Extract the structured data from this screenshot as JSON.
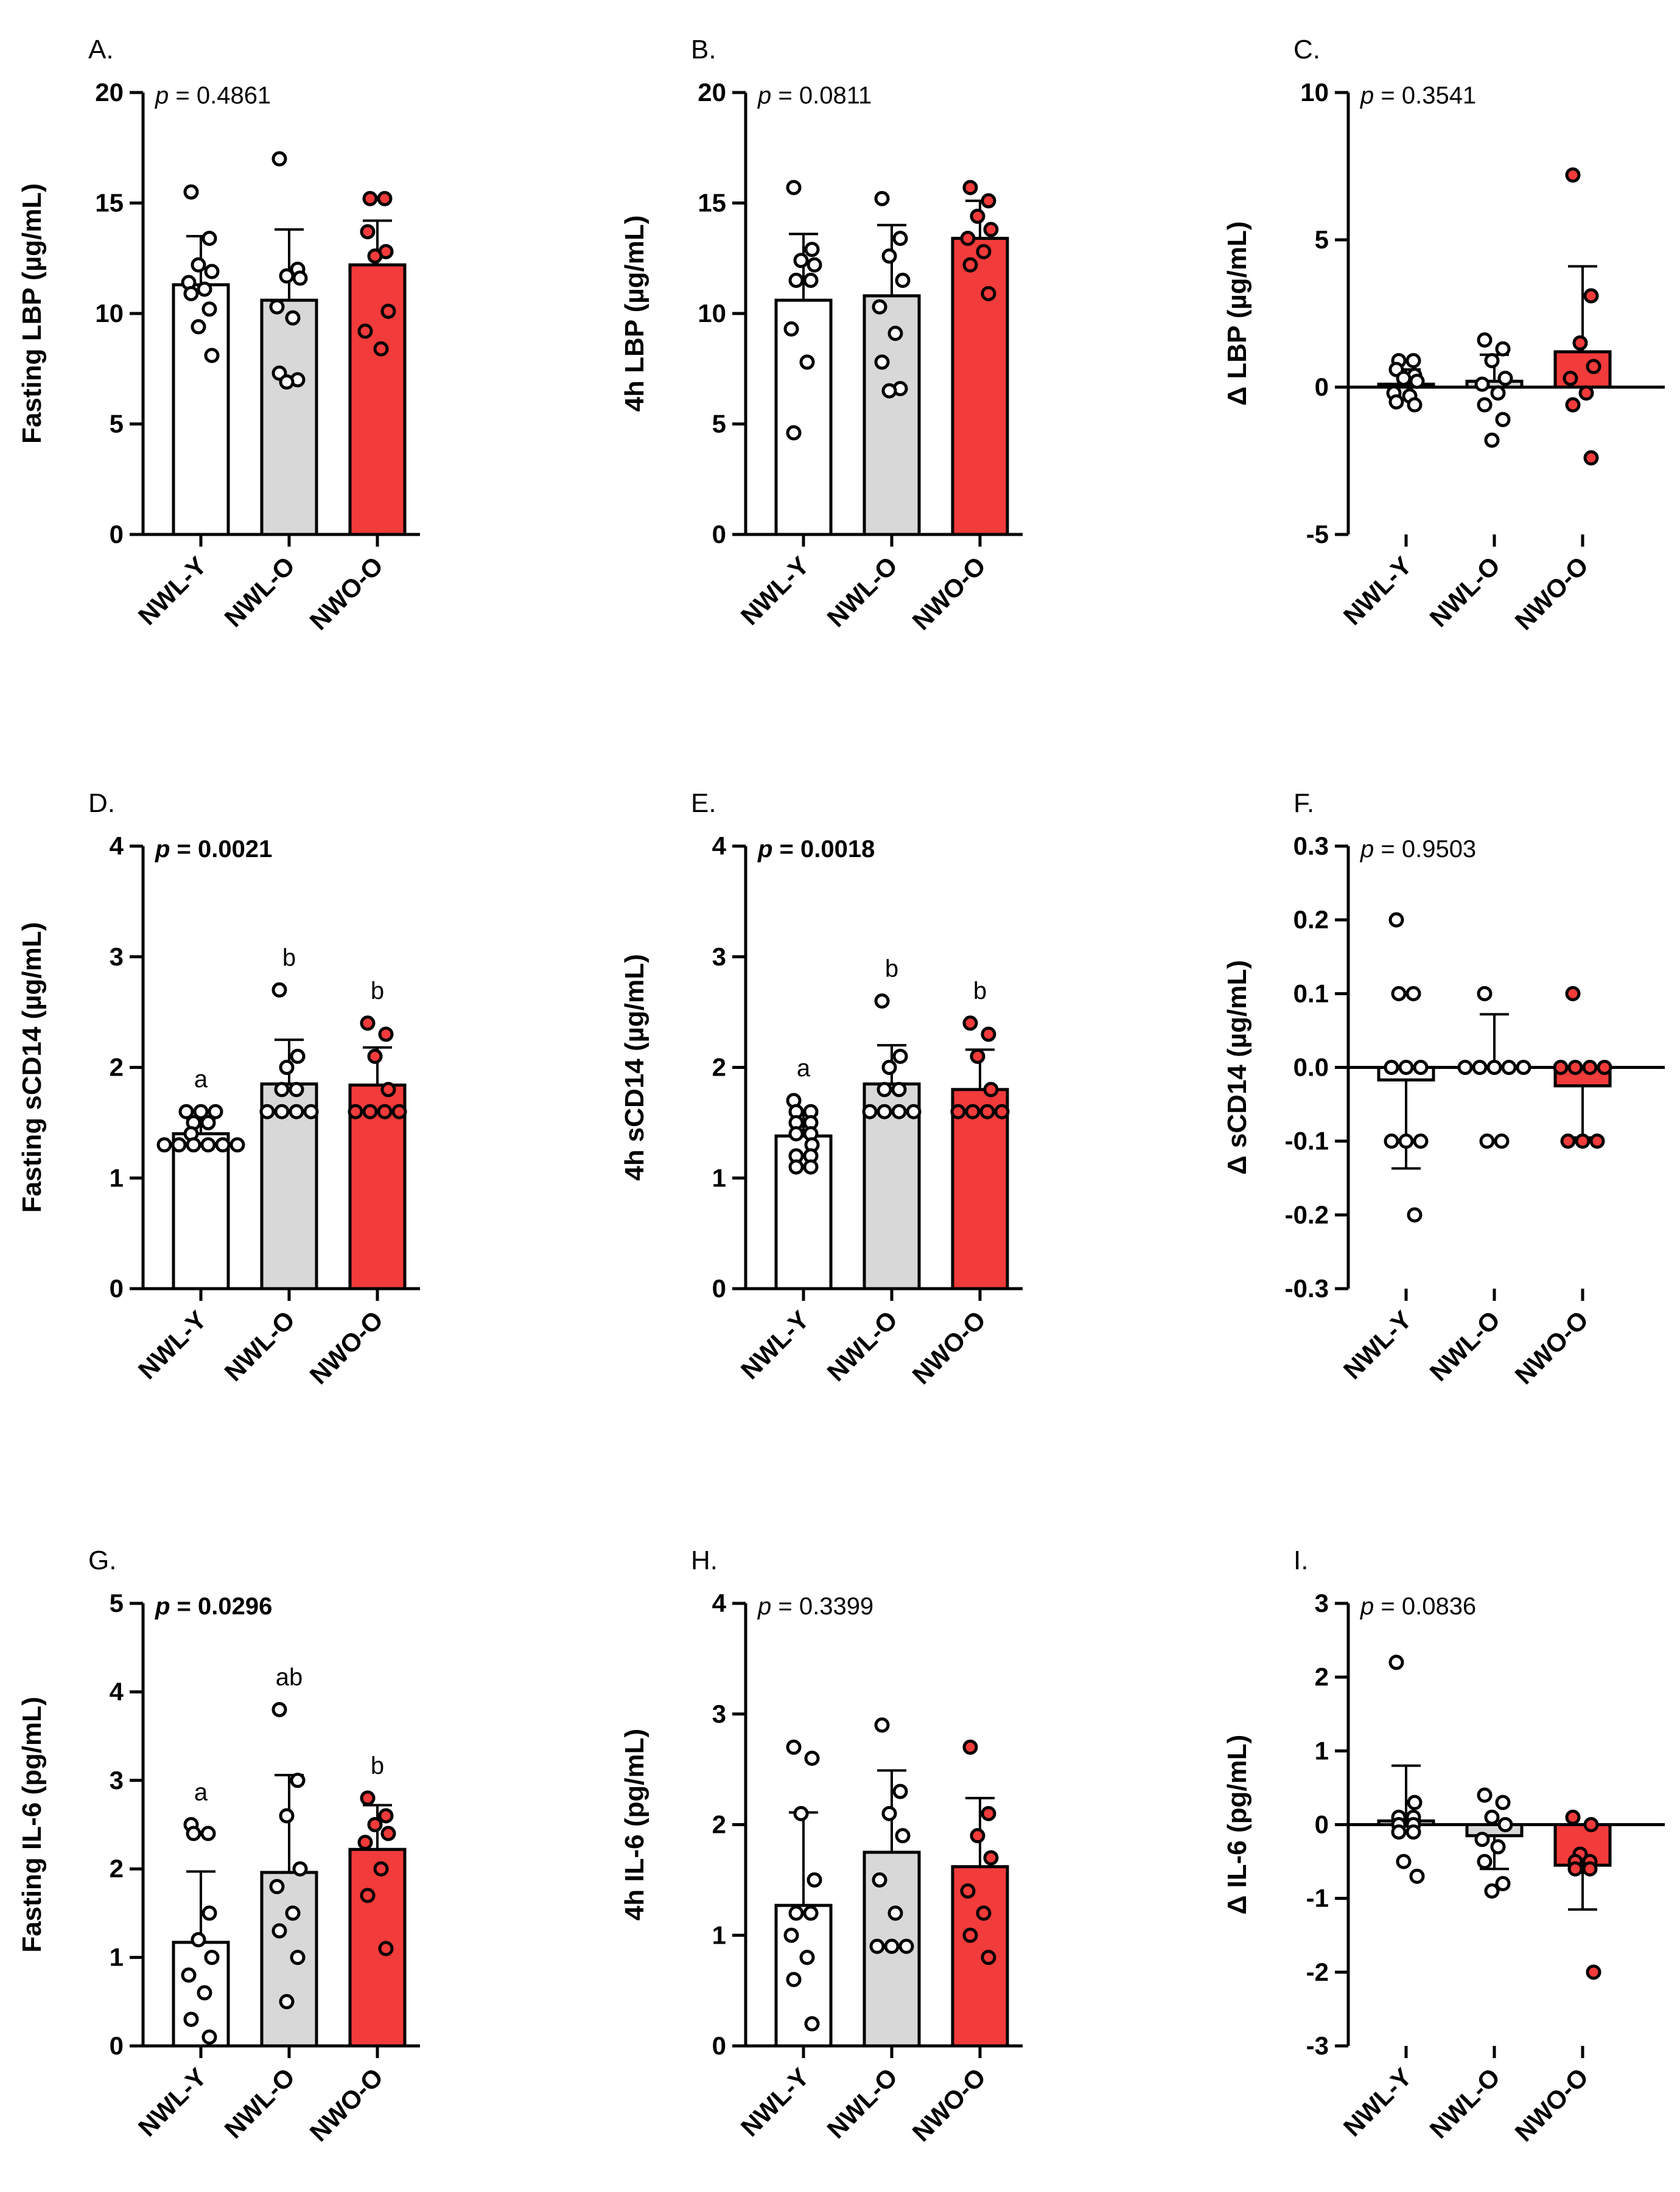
{
  "figure": {
    "title": ""
  },
  "colors": {
    "NWL-Y": "#ffffff",
    "NWL-O": "#d8d8d8",
    "NWO-O": "#f23b3b",
    "stroke": "#000000"
  },
  "chart_data": [
    {
      "id": "A",
      "panel_label": "A.",
      "type": "bar",
      "ylabel": "Fasting LBP (µg/mL)",
      "p_prefix": "p",
      "p_text": " = 0.4861",
      "p_bold": false,
      "ylim": [
        0,
        20
      ],
      "yticks": [
        0,
        5,
        10,
        15,
        20
      ],
      "ytick_labels": [
        "0",
        "5",
        "10",
        "15",
        "20"
      ],
      "zero_line": false,
      "categories": [
        "NWL-Y",
        "NWL-O",
        "NWO-O"
      ],
      "means": [
        11.3,
        10.6,
        12.2
      ],
      "sd": [
        2.2,
        3.2,
        2.0
      ],
      "sig_letters": [
        "",
        "",
        ""
      ],
      "points": [
        [
          15.5,
          13.4,
          12.2,
          11.9,
          11.4,
          11.1,
          10.9,
          10.2,
          9.4,
          8.1
        ],
        [
          17.0,
          12.0,
          11.7,
          11.6,
          10.3,
          9.8,
          7.3,
          7.0,
          6.9
        ],
        [
          15.2,
          15.2,
          13.7,
          12.8,
          12.6,
          10.1,
          9.2,
          8.4
        ]
      ]
    },
    {
      "id": "B",
      "panel_label": "B.",
      "type": "bar",
      "ylabel": "4h LBP (µg/mL)",
      "p_prefix": "p",
      "p_text": " = 0.0811",
      "p_bold": false,
      "ylim": [
        0,
        20
      ],
      "yticks": [
        0,
        5,
        10,
        15,
        20
      ],
      "ytick_labels": [
        "0",
        "5",
        "10",
        "15",
        "20"
      ],
      "zero_line": false,
      "categories": [
        "NWL-Y",
        "NWL-O",
        "NWO-O"
      ],
      "means": [
        10.6,
        10.8,
        13.4
      ],
      "sd": [
        3.0,
        3.2,
        1.7
      ],
      "sig_letters": [
        "",
        "",
        ""
      ],
      "points": [
        [
          15.7,
          12.9,
          12.4,
          12.2,
          11.5,
          11.5,
          9.3,
          7.8,
          4.6
        ],
        [
          15.2,
          13.4,
          12.6,
          11.5,
          10.3,
          9.1,
          7.8,
          6.6,
          6.5
        ],
        [
          15.7,
          15.1,
          14.4,
          13.8,
          13.4,
          12.8,
          12.2,
          10.9
        ]
      ]
    },
    {
      "id": "C",
      "panel_label": "C.",
      "type": "bar",
      "ylabel": "Δ LBP (µg/mL)",
      "p_prefix": "p",
      "p_text": " = 0.3541",
      "p_bold": false,
      "ylim": [
        -5,
        10
      ],
      "yticks": [
        -5,
        0,
        5,
        10
      ],
      "ytick_labels": [
        "-5",
        "0",
        "5",
        "10"
      ],
      "zero_line": true,
      "categories": [
        "NWL-Y",
        "NWL-O",
        "NWO-O"
      ],
      "means": [
        0.1,
        0.2,
        1.2
      ],
      "sd": [
        0.5,
        0.9,
        2.9
      ],
      "sig_letters": [
        "",
        "",
        ""
      ],
      "points": [
        [
          0.9,
          0.9,
          0.6,
          0.4,
          0.3,
          0.2,
          -0.2,
          -0.3,
          -0.5,
          -0.6
        ],
        [
          1.6,
          1.3,
          0.9,
          0.3,
          0.1,
          -0.2,
          -0.6,
          -1.1,
          -1.8
        ],
        [
          7.2,
          3.1,
          1.5,
          0.7,
          0.3,
          -0.2,
          -0.6,
          -2.4
        ]
      ]
    },
    {
      "id": "D",
      "panel_label": "D.",
      "type": "bar",
      "ylabel": "Fasting sCD14 (µg/mL)",
      "p_prefix": "p",
      "p_text": " = 0.0021",
      "p_bold": true,
      "ylim": [
        0,
        4
      ],
      "yticks": [
        0,
        1,
        2,
        3,
        4
      ],
      "ytick_labels": [
        "0",
        "1",
        "2",
        "3",
        "4"
      ],
      "zero_line": false,
      "categories": [
        "NWL-Y",
        "NWL-O",
        "NWO-O"
      ],
      "means": [
        1.4,
        1.85,
        1.84
      ],
      "sd": [
        0.13,
        0.4,
        0.34
      ],
      "sig_letters": [
        "a",
        "b",
        "b"
      ],
      "points": [
        [
          1.6,
          1.6,
          1.6,
          1.5,
          1.5,
          1.4,
          1.3,
          1.3,
          1.3,
          1.3,
          1.3,
          1.3
        ],
        [
          2.7,
          2.1,
          2.0,
          1.8,
          1.8,
          1.6,
          1.6,
          1.6,
          1.6
        ],
        [
          2.4,
          2.3,
          2.1,
          1.8,
          1.6,
          1.6,
          1.6,
          1.6
        ]
      ]
    },
    {
      "id": "E",
      "panel_label": "E.",
      "type": "bar",
      "ylabel": "4h sCD14 (µg/mL)",
      "p_prefix": "p",
      "p_text": " = 0.0018",
      "p_bold": true,
      "ylim": [
        0,
        4
      ],
      "yticks": [
        0,
        1,
        2,
        3,
        4
      ],
      "ytick_labels": [
        "0",
        "1",
        "2",
        "3",
        "4"
      ],
      "zero_line": false,
      "categories": [
        "NWL-Y",
        "NWL-O",
        "NWO-O"
      ],
      "means": [
        1.38,
        1.85,
        1.8
      ],
      "sd": [
        0.2,
        0.35,
        0.36
      ],
      "sig_letters": [
        "a",
        "b",
        "b"
      ],
      "points": [
        [
          1.7,
          1.6,
          1.6,
          1.5,
          1.5,
          1.4,
          1.4,
          1.3,
          1.2,
          1.2,
          1.1,
          1.1
        ],
        [
          2.6,
          2.1,
          2.0,
          1.8,
          1.8,
          1.6,
          1.6,
          1.6,
          1.6
        ],
        [
          2.4,
          2.3,
          2.1,
          1.8,
          1.6,
          1.6,
          1.6,
          1.6
        ]
      ]
    },
    {
      "id": "F",
      "panel_label": "F.",
      "type": "bar",
      "ylabel": "Δ sCD14 (µg/mL)",
      "p_prefix": "p",
      "p_text": " = 0.9503",
      "p_bold": false,
      "ylim": [
        -0.3,
        0.3
      ],
      "yticks": [
        -0.3,
        -0.2,
        -0.1,
        0.0,
        0.1,
        0.2,
        0.3
      ],
      "ytick_labels": [
        "-0.3",
        "-0.2",
        "-0.1",
        "0.0",
        "0.1",
        "0.2",
        "0.3"
      ],
      "zero_line": true,
      "categories": [
        "NWL-Y",
        "NWL-O",
        "NWO-O"
      ],
      "means": [
        -0.017,
        0.0,
        -0.025
      ],
      "sd": [
        0.12,
        0.072,
        0.07
      ],
      "sig_letters": [
        "",
        "",
        ""
      ],
      "points": [
        [
          0.2,
          0.1,
          0.1,
          0.0,
          0.0,
          0.0,
          -0.1,
          -0.1,
          -0.1,
          -0.2
        ],
        [
          0.1,
          0.0,
          0.0,
          0.0,
          0.0,
          0.0,
          -0.1,
          -0.1
        ],
        [
          0.1,
          0.0,
          0.0,
          0.0,
          0.0,
          -0.1,
          -0.1,
          -0.1
        ]
      ]
    },
    {
      "id": "G",
      "panel_label": "G.",
      "type": "bar",
      "ylabel": "Fasting IL-6 (pg/mL)",
      "p_prefix": "p",
      "p_text": " = 0.0296",
      "p_bold": true,
      "ylim": [
        0,
        5
      ],
      "yticks": [
        0,
        1,
        2,
        3,
        4,
        5
      ],
      "ytick_labels": [
        "0",
        "1",
        "2",
        "3",
        "4",
        "5"
      ],
      "zero_line": false,
      "categories": [
        "NWL-Y",
        "NWL-O",
        "NWO-O"
      ],
      "means": [
        1.17,
        1.96,
        2.22
      ],
      "sd": [
        0.8,
        1.1,
        0.5
      ],
      "sig_letters": [
        "a",
        "ab",
        "b"
      ],
      "points": [
        [
          2.5,
          2.4,
          2.4,
          1.5,
          1.2,
          1.0,
          0.8,
          0.6,
          0.3,
          0.1
        ],
        [
          3.8,
          3.0,
          2.6,
          2.0,
          1.8,
          1.5,
          1.3,
          1.0,
          0.5
        ],
        [
          2.8,
          2.6,
          2.5,
          2.4,
          2.3,
          2.0,
          1.7,
          1.1
        ]
      ]
    },
    {
      "id": "H",
      "panel_label": "H.",
      "type": "bar",
      "ylabel": "4h IL-6 (pg/mL)",
      "p_prefix": "p",
      "p_text": " = 0.3399",
      "p_bold": false,
      "ylim": [
        0,
        4
      ],
      "yticks": [
        0,
        1,
        2,
        3,
        4
      ],
      "ytick_labels": [
        "0",
        "1",
        "2",
        "3",
        "4"
      ],
      "zero_line": false,
      "categories": [
        "NWL-Y",
        "NWL-O",
        "NWO-O"
      ],
      "means": [
        1.27,
        1.75,
        1.62
      ],
      "sd": [
        0.84,
        0.74,
        0.62
      ],
      "sig_letters": [
        "",
        "",
        ""
      ],
      "points": [
        [
          2.7,
          2.6,
          2.1,
          1.5,
          1.2,
          1.2,
          1.0,
          0.8,
          0.6,
          0.2
        ],
        [
          2.9,
          2.3,
          2.1,
          1.9,
          1.5,
          1.2,
          0.9,
          0.9,
          0.9
        ],
        [
          2.7,
          2.1,
          1.9,
          1.7,
          1.4,
          1.2,
          1.0,
          0.8
        ]
      ]
    },
    {
      "id": "I",
      "panel_label": "I.",
      "type": "bar",
      "ylabel": "Δ IL-6 (pg/mL)",
      "p_prefix": "p",
      "p_text": " = 0.0836",
      "p_bold": false,
      "ylim": [
        -3,
        3
      ],
      "yticks": [
        -3,
        -2,
        -1,
        0,
        1,
        2,
        3
      ],
      "ytick_labels": [
        "-3",
        "-2",
        "-1",
        "0",
        "1",
        "2",
        "3"
      ],
      "zero_line": true,
      "categories": [
        "NWL-Y",
        "NWL-O",
        "NWO-O"
      ],
      "means": [
        0.05,
        -0.15,
        -0.55
      ],
      "sd": [
        0.75,
        0.45,
        0.6
      ],
      "sig_letters": [
        "",
        "",
        ""
      ],
      "points": [
        [
          2.2,
          0.3,
          0.1,
          0.1,
          0.0,
          0.0,
          -0.1,
          -0.1,
          -0.5,
          -0.7
        ],
        [
          0.4,
          0.3,
          0.1,
          0.0,
          -0.2,
          -0.3,
          -0.5,
          -0.8,
          -0.9
        ],
        [
          0.1,
          0.0,
          -0.4,
          -0.5,
          -0.5,
          -0.6,
          -0.6,
          -2.0
        ]
      ]
    }
  ]
}
